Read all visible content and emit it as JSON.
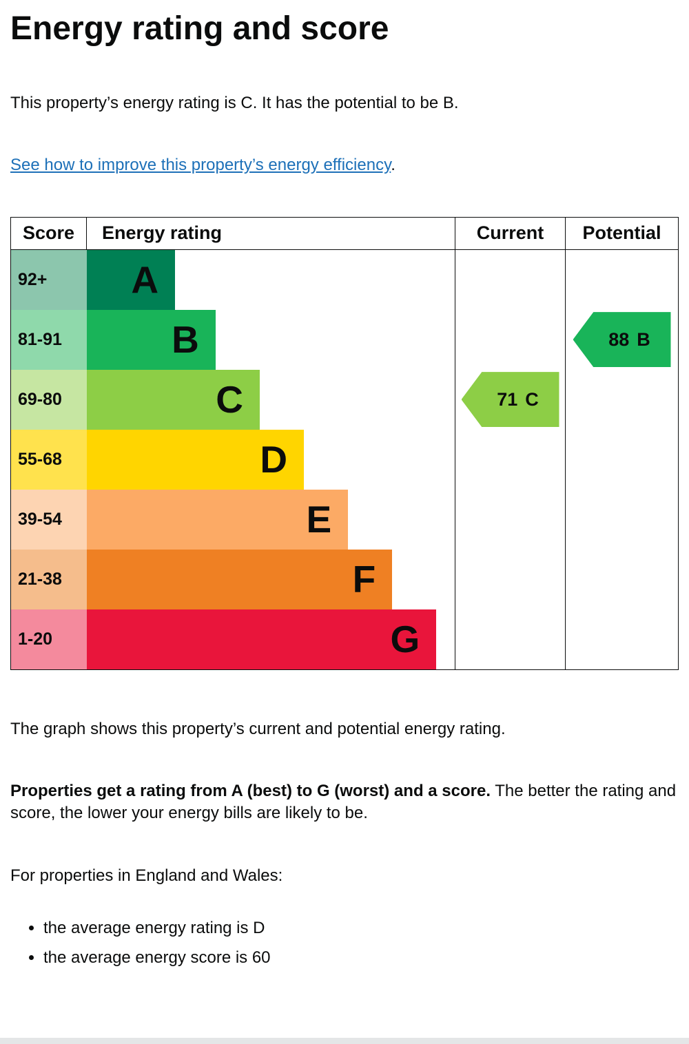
{
  "page": {
    "title": "Energy rating and score",
    "intro": "This property’s energy rating is C. It has the potential to be B.",
    "improve_link": "See how to improve this property’s energy efficiency",
    "improve_suffix": ".",
    "graph_caption": "The graph shows this property’s current and potential energy rating.",
    "explain_bold": "Properties get a rating from A (best) to G (worst) and a score.",
    "explain_rest": " The better the rating and score, the lower your energy bills are likely to be.",
    "regions_line": "For properties in England and Wales:",
    "bullets": [
      "the average energy rating is D",
      "the average energy score is 60"
    ]
  },
  "chart_data": {
    "type": "bar",
    "title": "Energy rating and score chart",
    "headers": {
      "score": "Score",
      "rating": "Energy rating",
      "current": "Current",
      "potential": "Potential"
    },
    "bands": [
      {
        "score_range": "92+",
        "letter": "A",
        "color": "#008054",
        "score_bg": "#8cc6ad",
        "width_pct": 24
      },
      {
        "score_range": "81-91",
        "letter": "B",
        "color": "#19b459",
        "score_bg": "#8fd9ab",
        "width_pct": 35
      },
      {
        "score_range": "69-80",
        "letter": "C",
        "color": "#8dce46",
        "score_bg": "#c6e6a2",
        "width_pct": 47
      },
      {
        "score_range": "55-68",
        "letter": "D",
        "color": "#ffd500",
        "score_bg": "#ffe24d",
        "width_pct": 59
      },
      {
        "score_range": "39-54",
        "letter": "E",
        "color": "#fcaa65",
        "score_bg": "#fdd4b2",
        "width_pct": 71
      },
      {
        "score_range": "21-38",
        "letter": "F",
        "color": "#ef8023",
        "score_bg": "#f5bd8c",
        "width_pct": 83
      },
      {
        "score_range": "1-20",
        "letter": "G",
        "color": "#e9153b",
        "score_bg": "#f48a9d",
        "width_pct": 95
      }
    ],
    "current": {
      "value": 71,
      "letter": "C",
      "label": "71 C",
      "band_index": 2,
      "color": "#8dce46"
    },
    "potential": {
      "value": 88,
      "letter": "B",
      "label": "88 B",
      "band_index": 1,
      "color": "#19b459"
    }
  }
}
